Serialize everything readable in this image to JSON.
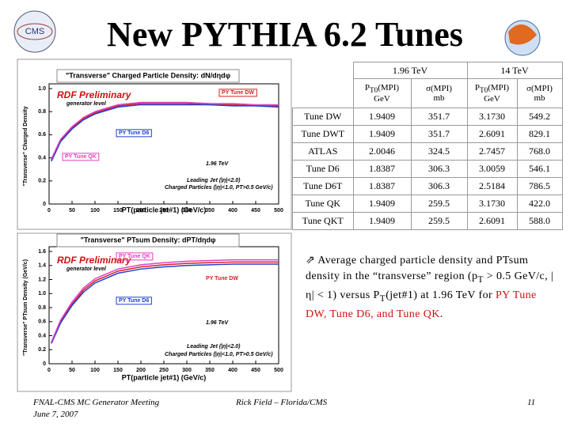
{
  "header": {
    "title": "New PYTHIA 6.2 Tunes"
  },
  "chart_data": [
    {
      "type": "line",
      "title": "\"Transverse\" Charged Particle Density: dN/dηdφ",
      "y_label": "\"Transverse\" Charged Density",
      "x_label": "PT(particle jet#1)  (GeV/c)",
      "annotations": [
        "RDF Preliminary",
        "generator level",
        "1.96 TeV",
        "Leading Jet (|η|<2.0)",
        "Charged Particles (|η|<1.0, PT>0.5 GeV/c)"
      ],
      "x": [
        5,
        25,
        50,
        75,
        100,
        150,
        200,
        250,
        300,
        350,
        400,
        450,
        500
      ],
      "series": [
        {
          "name": "PY Tune DW",
          "color": "#d62020",
          "values": [
            0.38,
            0.55,
            0.66,
            0.74,
            0.79,
            0.85,
            0.87,
            0.87,
            0.87,
            0.86,
            0.86,
            0.85,
            0.85
          ]
        },
        {
          "name": "PY Tune D6",
          "color": "#2040d0",
          "values": [
            0.37,
            0.54,
            0.65,
            0.73,
            0.78,
            0.84,
            0.86,
            0.86,
            0.86,
            0.86,
            0.85,
            0.85,
            0.84
          ]
        },
        {
          "name": "PY Tune QK",
          "color": "#e040c0",
          "values": [
            0.39,
            0.56,
            0.67,
            0.75,
            0.8,
            0.86,
            0.88,
            0.88,
            0.88,
            0.87,
            0.87,
            0.86,
            0.86
          ]
        }
      ],
      "xlim": [
        0,
        500
      ],
      "xticks": [
        0,
        50,
        100,
        150,
        200,
        250,
        300,
        350,
        400,
        450,
        500
      ],
      "ylim": [
        0,
        1
      ],
      "yticks": [
        0,
        0.2,
        0.4,
        0.6,
        0.8,
        {
          "value": 1,
          "label": "1.0"
        }
      ]
    },
    {
      "type": "line",
      "title": "\"Transverse\" PTsum Density: dPT/dηdφ",
      "y_label": "\"Transverse\" PTsum Density (GeV/c)",
      "x_label": "PT(particle jet#1)  (GeV/c)",
      "annotations": [
        "RDF Preliminary",
        "generator level",
        "1.96 TeV",
        "Leading Jet (|η|<2.0)",
        "Charged Particles (|η|<1.0, PT>0.5 GeV/c)"
      ],
      "x": [
        5,
        25,
        50,
        75,
        100,
        150,
        200,
        250,
        300,
        350,
        400,
        450,
        500
      ],
      "series": [
        {
          "name": "PY Tune DW",
          "color": "#d62020",
          "values": [
            0.3,
            0.6,
            0.85,
            1.05,
            1.18,
            1.32,
            1.38,
            1.41,
            1.43,
            1.44,
            1.45,
            1.45,
            1.45
          ]
        },
        {
          "name": "PY Tune D6",
          "color": "#2040d0",
          "values": [
            0.29,
            0.58,
            0.83,
            1.02,
            1.15,
            1.29,
            1.35,
            1.38,
            1.4,
            1.41,
            1.42,
            1.42,
            1.42
          ]
        },
        {
          "name": "PY Tune QK",
          "color": "#e040c0",
          "values": [
            0.31,
            0.62,
            0.88,
            1.08,
            1.21,
            1.35,
            1.41,
            1.44,
            1.46,
            1.47,
            1.48,
            1.48,
            1.48
          ]
        }
      ],
      "xlim": [
        0,
        500
      ],
      "xticks": [
        0,
        50,
        100,
        150,
        200,
        250,
        300,
        350,
        400,
        450,
        500
      ],
      "ylim": [
        0,
        1.6
      ],
      "yticks": [
        0,
        0.2,
        0.4,
        0.6,
        0.8,
        {
          "value": 1,
          "label": "1.0"
        },
        1.2,
        1.4,
        1.6
      ]
    }
  ],
  "table": {
    "groups": [
      "1.96 TeV",
      "14 TeV"
    ],
    "columns": [
      {
        "main": "P",
        "sub": "T0",
        "rest": "(MPI)",
        "unit": "GeV"
      },
      {
        "main": "σ(MPI)",
        "unit": "mb"
      },
      {
        "main": "P",
        "sub": "T0",
        "rest": "(MPI)",
        "unit": "GeV"
      },
      {
        "main": "σ(MPI)",
        "unit": "mb"
      }
    ],
    "rows": [
      [
        "Tune DW",
        "1.9409",
        "351.7",
        "3.1730",
        "549.2"
      ],
      [
        "Tune DWT",
        "1.9409",
        "351.7",
        "2.6091",
        "829.1"
      ],
      [
        "ATLAS",
        "2.0046",
        "324.5",
        "2.7457",
        "768.0"
      ],
      [
        "Tune D6",
        "1.8387",
        "306.3",
        "3.0059",
        "546.1"
      ],
      [
        "Tune D6T",
        "1.8387",
        "306.3",
        "2.5184",
        "786.5"
      ],
      [
        "Tune QK",
        "1.9409",
        "259.5",
        "3.1730",
        "422.0"
      ],
      [
        "Tune QKT",
        "1.9409",
        "259.5",
        "2.6091",
        "588.0"
      ]
    ]
  },
  "bullet": {
    "parts": [
      "Average charged particle density and PTsum density in the “transverse” region (p",
      "T",
      " > 0.5 GeV/c, |",
      "η",
      "| < 1) versus P",
      "T",
      "(jet#1) at 1.96 TeV for ",
      "PY Tune DW, Tune D6, and Tune QK",
      "."
    ]
  },
  "footer": {
    "meeting": "FNAL-CMS MC Generator Meeting",
    "date": "June 7, 2007",
    "author": "Rick Field – Florida/CMS",
    "page": "11"
  }
}
